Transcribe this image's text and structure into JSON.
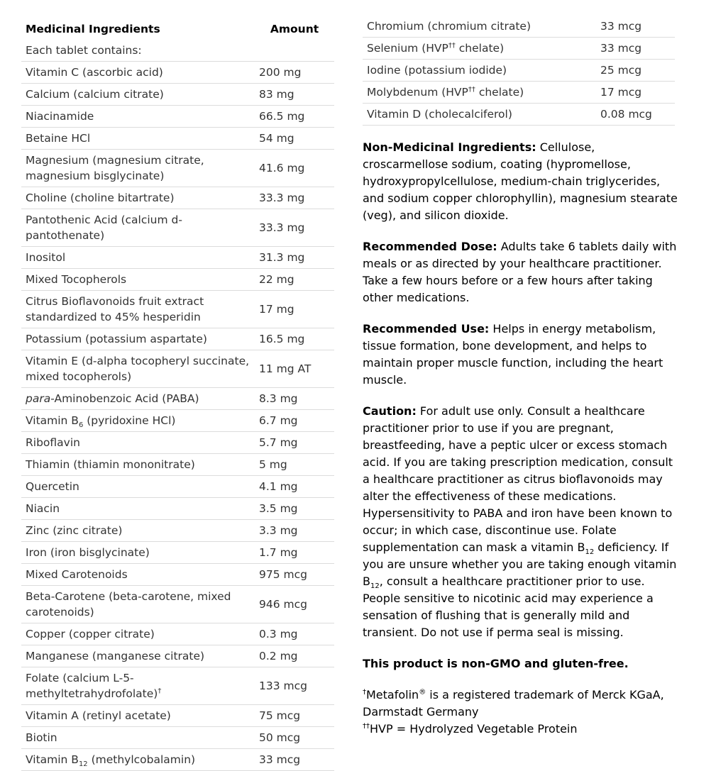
{
  "left_table": {
    "headers": [
      "Medicinal Ingredients",
      "Amount"
    ],
    "intro": "Each tablet contains:",
    "rows": [
      {
        "name": "Vitamin C (ascorbic acid)",
        "amount": "200 mg"
      },
      {
        "name": "Calcium (calcium citrate)",
        "amount": "83 mg"
      },
      {
        "name": "Niacinamide",
        "amount": "66.5 mg"
      },
      {
        "name": "Betaine HCl",
        "amount": "54 mg"
      },
      {
        "name": "Magnesium (magnesium citrate, magnesium bisglycinate)",
        "amount": "41.6 mg"
      },
      {
        "name": "Choline (choline bitartrate)",
        "amount": "33.3 mg"
      },
      {
        "name": "Pantothenic Acid (calcium d-pantothenate)",
        "amount": "33.3 mg"
      },
      {
        "name": "Inositol",
        "amount": "31.3 mg"
      },
      {
        "name": "Mixed Tocopherols",
        "amount": "22 mg"
      },
      {
        "name": "Citrus Bioflavonoids fruit extract standardized to 45% hesperidin",
        "amount": "17 mg"
      },
      {
        "name": "Potassium (potassium aspartate)",
        "amount": "16.5 mg"
      },
      {
        "name": "Vitamin E (d-alpha tocopheryl succinate, mixed tocopherols)",
        "amount": "11 mg AT"
      },
      {
        "name": [
          {
            "text": "para",
            "style": "italic"
          },
          "-Aminobenzoic Acid (PABA)"
        ],
        "amount": "8.3 mg"
      },
      {
        "name": [
          "Vitamin B",
          {
            "text": "6",
            "style": "sub"
          },
          " (pyridoxine HCl)"
        ],
        "amount": "6.7 mg"
      },
      {
        "name": "Riboflavin",
        "amount": "5.7 mg"
      },
      {
        "name": "Thiamin (thiamin mononitrate)",
        "amount": "5 mg"
      },
      {
        "name": "Quercetin",
        "amount": "4.1 mg"
      },
      {
        "name": "Niacin",
        "amount": "3.5 mg"
      },
      {
        "name": "Zinc (zinc citrate)",
        "amount": "3.3 mg"
      },
      {
        "name": "Iron (iron bisglycinate)",
        "amount": "1.7 mg"
      },
      {
        "name": "Mixed Carotenoids",
        "amount": "975 mcg"
      },
      {
        "name": "Beta-Carotene (beta-carotene, mixed carotenoids)",
        "amount": "946 mcg"
      },
      {
        "name": "Copper (copper citrate)",
        "amount": "0.3 mg"
      },
      {
        "name": "Manganese (manganese citrate)",
        "amount": "0.2 mg"
      },
      {
        "name": [
          "Folate (calcium L-5-methyltetrahydrofolate)",
          {
            "text": "†",
            "style": "sup"
          }
        ],
        "amount": "133 mcg"
      },
      {
        "name": "Vitamin A (retinyl acetate)",
        "amount": "75 mcg"
      },
      {
        "name": "Biotin",
        "amount": "50 mcg"
      },
      {
        "name": [
          "Vitamin B",
          {
            "text": "12",
            "style": "sub"
          },
          " (methylcobalamin)"
        ],
        "amount": "33 mcg"
      }
    ]
  },
  "right_table": {
    "rows": [
      {
        "name": "Chromium (chromium citrate)",
        "amount": "33 mcg"
      },
      {
        "name": [
          "Selenium (HVP",
          {
            "text": "††",
            "style": "sup"
          },
          " chelate)"
        ],
        "amount": "33 mcg"
      },
      {
        "name": "Iodine (potassium iodide)",
        "amount": "25 mcg"
      },
      {
        "name": [
          "Molybdenum (HVP",
          {
            "text": "††",
            "style": "sup"
          },
          " chelate)"
        ],
        "amount": "17 mcg"
      },
      {
        "name": "Vitamin D (cholecalciferol)",
        "amount": "0.08 mcg"
      }
    ]
  },
  "sections": [
    {
      "label": "Non-Medicinal Ingredients:",
      "text": " Cellulose, croscarmellose sodium, coating (hypromellose, hydroxypropylcellulose, medium-chain triglycerides, and sodium copper chlorophyllin), magnesium stearate (veg), and silicon dioxide."
    },
    {
      "label": "Recommended Dose:",
      "text": " Adults take 6 tablets daily with meals or as directed by your healthcare practitioner. Take a few hours before or a few hours after taking other medications."
    },
    {
      "label": "Recommended Use:",
      "text": " Helps in energy metabolism, tissue formation, bone development, and helps to maintain proper muscle function, including the heart muscle."
    },
    {
      "label": "Caution:",
      "text": [
        " For adult use only. Consult a healthcare practitioner prior to use if you are pregnant, breastfeeding, have a peptic ulcer or excess stomach acid. If you are taking prescription medication, consult a healthcare practitioner as citrus bioflavonoids may alter the effectiveness of these medications. Hypersensitivity to PABA and iron have been known to occur; in which case, discontinue use. Folate supplementation can mask a vitamin B",
        {
          "text": "12",
          "style": "sub"
        },
        " deficiency. If you are unsure whether you are taking enough vitamin B",
        {
          "text": "12",
          "style": "sub"
        },
        ", consult a healthcare practitioner prior to use. People sensitive to nicotinic acid may experience a sensation of flushing that is generally mild and transient. Do not use if perma seal is missing."
      ]
    }
  ],
  "note": "This product is non-GMO and gluten-free.",
  "footnotes": [
    [
      {
        "text": "†",
        "style": "sup"
      },
      "Metafolin",
      {
        "text": "®",
        "style": "sup"
      },
      " is a registered trademark of Merck KGaA, Darmstadt Germany"
    ],
    [
      {
        "text": "††",
        "style": "sup"
      },
      "HVP = Hydrolyzed Vegetable Protein"
    ]
  ]
}
